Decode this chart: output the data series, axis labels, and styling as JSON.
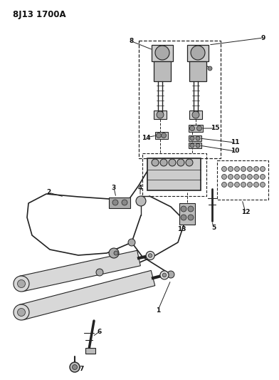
{
  "title": "8J13 1700A",
  "bg_color": "#ffffff",
  "line_color": "#222222",
  "figsize": [
    3.92,
    5.33
  ],
  "dpi": 100
}
